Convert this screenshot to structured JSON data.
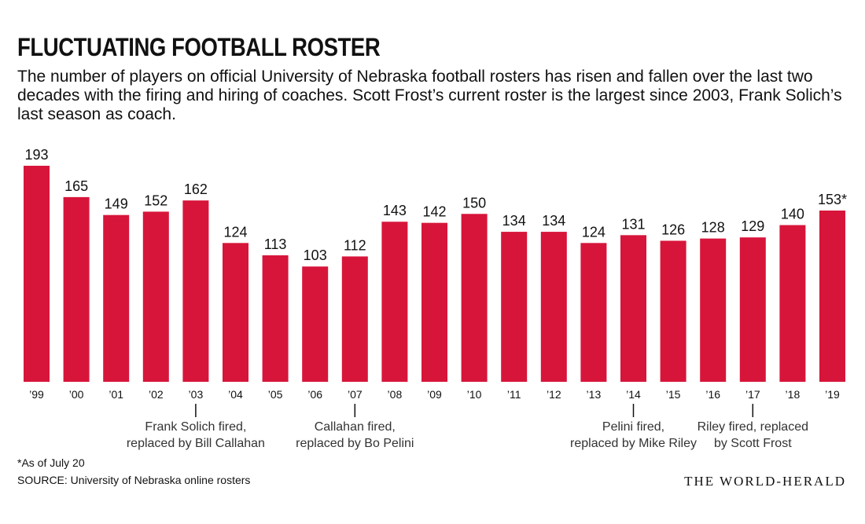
{
  "header": {
    "title": "FLUCTUATING FOOTBALL ROSTER",
    "subtitle": "The number of players on official University of Nebraska football rosters has risen and fallen over the last two decades with the firing and hiring of coaches. Scott Frost’s current roster is the largest since 2003, Frank Solich’s last season as coach."
  },
  "chart_data": {
    "type": "bar",
    "categories": [
      "’99",
      "’00",
      "’01",
      "’02",
      "’03",
      "’04",
      "’05",
      "’06",
      "’07",
      "’08",
      "’09",
      "’10",
      "’11",
      "’12",
      "’13",
      "’14",
      "’15",
      "’16",
      "’17",
      "’18",
      "’19"
    ],
    "values": [
      193,
      165,
      149,
      152,
      162,
      124,
      113,
      103,
      112,
      143,
      142,
      150,
      134,
      134,
      124,
      131,
      126,
      128,
      129,
      140,
      153
    ],
    "data_labels": [
      "193",
      "165",
      "149",
      "152",
      "162",
      "124",
      "113",
      "103",
      "112",
      "143",
      "142",
      "150",
      "134",
      "134",
      "124",
      "131",
      "126",
      "128",
      "129",
      "140",
      "153*"
    ],
    "color": "#d7153a",
    "ylim": [
      0,
      193
    ],
    "grid": false,
    "annotations": [
      {
        "category_index": 4,
        "lines": [
          "Frank Solich fired,",
          "replaced by Bill Callahan"
        ]
      },
      {
        "category_index": 8,
        "lines": [
          "Callahan fired,",
          "replaced by Bo Pelini"
        ]
      },
      {
        "category_index": 15,
        "lines": [
          "Pelini fired,",
          "replaced by Mike Riley"
        ]
      },
      {
        "category_index": 18,
        "lines": [
          "Riley fired, replaced",
          "by Scott Frost"
        ]
      }
    ]
  },
  "footer": {
    "note": "*As of July 20",
    "source": "SOURCE: University of Nebraska online rosters",
    "brand": "THE WORLD-HERALD"
  }
}
